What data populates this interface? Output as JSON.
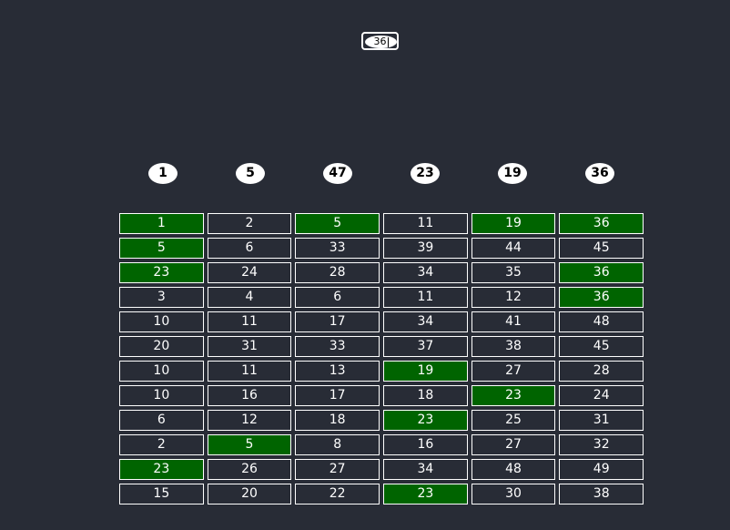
{
  "input": {
    "value": "36"
  },
  "drawn": [
    "1",
    "5",
    "47",
    "23",
    "19",
    "36"
  ],
  "colors": {
    "background": "#282c36",
    "hit": "#006400",
    "border": "#ffffff"
  },
  "rows": [
    {
      "values": [
        "1",
        "2",
        "5",
        "11",
        "19",
        "36"
      ],
      "hits": [
        true,
        false,
        true,
        false,
        true,
        true
      ]
    },
    {
      "values": [
        "5",
        "6",
        "33",
        "39",
        "44",
        "45"
      ],
      "hits": [
        true,
        false,
        false,
        false,
        false,
        false
      ]
    },
    {
      "values": [
        "23",
        "24",
        "28",
        "34",
        "35",
        "36"
      ],
      "hits": [
        true,
        false,
        false,
        false,
        false,
        true
      ]
    },
    {
      "values": [
        "3",
        "4",
        "6",
        "11",
        "12",
        "36"
      ],
      "hits": [
        false,
        false,
        false,
        false,
        false,
        true
      ]
    },
    {
      "values": [
        "10",
        "11",
        "17",
        "34",
        "41",
        "48"
      ],
      "hits": [
        false,
        false,
        false,
        false,
        false,
        false
      ]
    },
    {
      "values": [
        "20",
        "31",
        "33",
        "37",
        "38",
        "45"
      ],
      "hits": [
        false,
        false,
        false,
        false,
        false,
        false
      ]
    },
    {
      "values": [
        "10",
        "11",
        "13",
        "19",
        "27",
        "28"
      ],
      "hits": [
        false,
        false,
        false,
        true,
        false,
        false
      ]
    },
    {
      "values": [
        "10",
        "16",
        "17",
        "18",
        "23",
        "24"
      ],
      "hits": [
        false,
        false,
        false,
        false,
        true,
        false
      ]
    },
    {
      "values": [
        "6",
        "12",
        "18",
        "23",
        "25",
        "31"
      ],
      "hits": [
        false,
        false,
        false,
        true,
        false,
        false
      ]
    },
    {
      "values": [
        "2",
        "5",
        "8",
        "16",
        "27",
        "32"
      ],
      "hits": [
        false,
        true,
        false,
        false,
        false,
        false
      ]
    },
    {
      "values": [
        "23",
        "26",
        "27",
        "34",
        "48",
        "49"
      ],
      "hits": [
        true,
        false,
        false,
        false,
        false,
        false
      ]
    },
    {
      "values": [
        "15",
        "20",
        "22",
        "23",
        "30",
        "38"
      ],
      "hits": [
        false,
        false,
        false,
        true,
        false,
        false
      ]
    }
  ]
}
